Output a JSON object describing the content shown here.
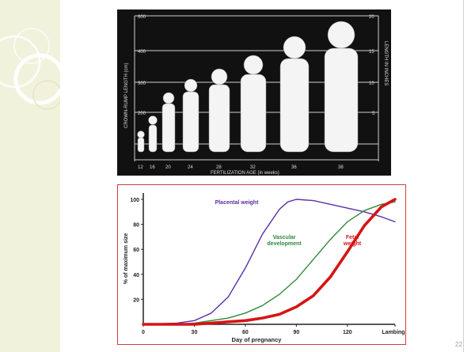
{
  "slide": {
    "page_number": "22"
  },
  "growth_photo": {
    "y_axis_label": "CROWN-RUMP LENGTH (cm)",
    "x_axis_label": "FERTILIZATION AGE (in weeks)",
    "right_axis_label": "LENGTH IN INCHES",
    "left_ticks": [
      "600",
      "400",
      "300",
      "200"
    ],
    "right_ticks": [
      "20",
      "15",
      "10",
      "5"
    ],
    "age_labels": [
      "12",
      "16",
      "20",
      "24",
      "28",
      "32",
      "36",
      "38"
    ]
  },
  "chart_data": {
    "type": "line",
    "title": "",
    "xlabel": "Day of pregnancy",
    "ylabel": "% of maximum size",
    "xlim": [
      0,
      148
    ],
    "ylim": [
      0,
      100
    ],
    "x_ticks": [
      "0",
      "30",
      "60",
      "90",
      "120",
      "Lambing"
    ],
    "y_ticks": [
      "20",
      "40",
      "60",
      "80",
      "100"
    ],
    "series": [
      {
        "name": "Placental weight",
        "color": "#5a2ea8",
        "x": [
          0,
          20,
          30,
          40,
          50,
          60,
          70,
          80,
          85,
          90,
          100,
          110,
          120,
          130,
          140,
          148
        ],
        "values": [
          0,
          1,
          3,
          9,
          22,
          45,
          72,
          92,
          98,
          100,
          99,
          96,
          93,
          90,
          86,
          82
        ]
      },
      {
        "name": "Vascular development",
        "color": "#2f8a3a",
        "x": [
          0,
          20,
          30,
          40,
          50,
          60,
          70,
          80,
          90,
          100,
          110,
          120,
          130,
          140,
          148
        ],
        "values": [
          0,
          0,
          1,
          3,
          5,
          9,
          15,
          24,
          36,
          52,
          68,
          82,
          91,
          96,
          98
        ]
      },
      {
        "name": "Fetal weight",
        "color": "#d61414",
        "x": [
          0,
          30,
          40,
          50,
          60,
          70,
          80,
          90,
          100,
          110,
          120,
          130,
          140,
          148
        ],
        "values": [
          0,
          0,
          1,
          2,
          3,
          5,
          8,
          14,
          23,
          38,
          58,
          79,
          94,
          100
        ]
      }
    ]
  }
}
